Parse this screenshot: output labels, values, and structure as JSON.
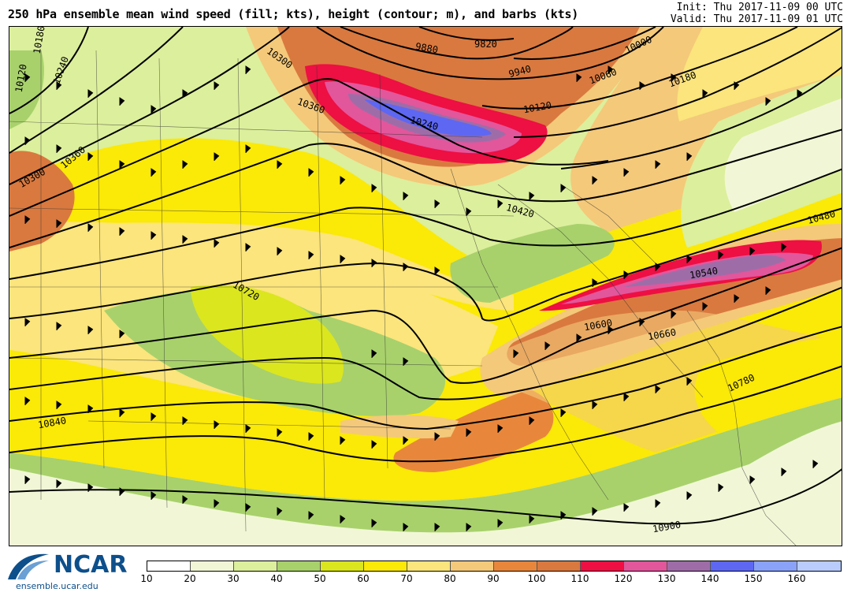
{
  "header": {
    "title": "250 hPa ensemble mean wind speed (fill; kts), height (contour; m), and barbs (kts)",
    "init": "Init: Thu 2017-11-09 00 UTC",
    "valid": "Valid: Thu 2017-11-09 01 UTC"
  },
  "logo": {
    "name": "NCAR",
    "url": "ensemble.ucar.edu"
  },
  "colorbar": {
    "ticks": [
      "10",
      "20",
      "30",
      "40",
      "50",
      "60",
      "70",
      "80",
      "90",
      "100",
      "110",
      "120",
      "130",
      "140",
      "150",
      "160"
    ],
    "colors": [
      "#ffffff",
      "#f1f7d6",
      "#dcef9c",
      "#a8d16c",
      "#dbe61e",
      "#fbe907",
      "#fbe57c",
      "#f4c97a",
      "#e8873c",
      "#d9793f",
      "#ee0f43",
      "#e2569c",
      "#9e6da8",
      "#5e67f2",
      "#8aa2f8",
      "#b9ccfc"
    ]
  },
  "map": {
    "contour_labels": [
      {
        "text": "10120"
      },
      {
        "text": "10180"
      },
      {
        "text": "10240"
      },
      {
        "text": "10300"
      },
      {
        "text": "10360"
      },
      {
        "text": "10300"
      },
      {
        "text": "10360"
      },
      {
        "text": "9880"
      },
      {
        "text": "9820"
      },
      {
        "text": "9940"
      },
      {
        "text": "10000"
      },
      {
        "text": "10060"
      },
      {
        "text": "10120"
      },
      {
        "text": "10180"
      },
      {
        "text": "10240"
      },
      {
        "text": "10420"
      },
      {
        "text": "10480"
      },
      {
        "text": "10540"
      },
      {
        "text": "10600"
      },
      {
        "text": "10660"
      },
      {
        "text": "10720"
      },
      {
        "text": "10780"
      },
      {
        "text": "10840"
      },
      {
        "text": "10900"
      }
    ]
  }
}
